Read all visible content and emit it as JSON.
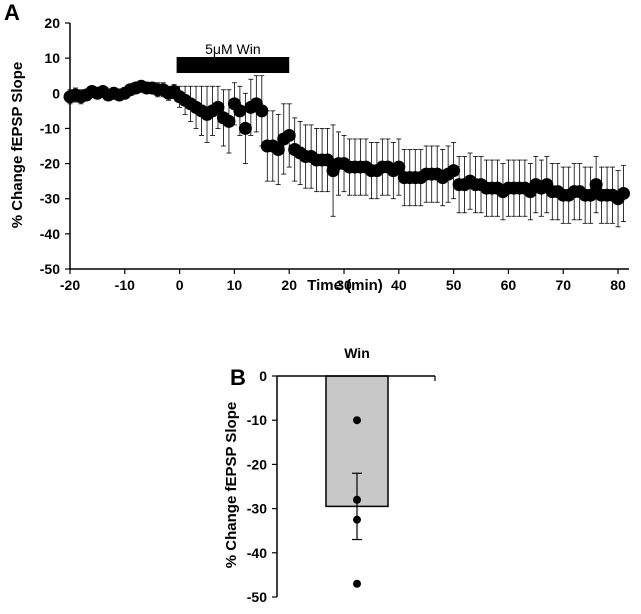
{
  "chart_data": [
    {
      "panel": "A",
      "type": "scatter",
      "xlabel": "Time (min)",
      "ylabel": "% Change fEPSP Slope",
      "xlim": [
        -20,
        82
      ],
      "ylim": [
        -50,
        20
      ],
      "xticks": [
        -20,
        -10,
        0,
        10,
        20,
        30,
        40,
        50,
        60,
        70,
        80
      ],
      "yticks": [
        20,
        10,
        0,
        -10,
        -20,
        -30,
        -40,
        -50
      ],
      "grid": false,
      "annotation": {
        "label": "5μM Win",
        "x_start": 0,
        "x_end": 20
      },
      "series": [
        {
          "x": [
            -20,
            -19,
            -18,
            -17,
            -16,
            -15,
            -14,
            -13,
            -12,
            -11,
            -10,
            -9,
            -8,
            -7,
            -6,
            -5,
            -4,
            -3,
            -2,
            -1,
            0,
            1,
            2,
            3,
            4,
            5,
            6,
            7,
            8,
            9,
            10,
            11,
            12,
            13,
            14,
            15,
            16,
            17,
            18,
            19,
            20,
            21,
            22,
            23,
            24,
            25,
            26,
            27,
            28,
            29,
            30,
            31,
            32,
            33,
            34,
            35,
            36,
            37,
            38,
            39,
            40,
            41,
            42,
            43,
            44,
            45,
            46,
            47,
            48,
            49,
            50,
            51,
            52,
            53,
            54,
            55,
            56,
            57,
            58,
            59,
            60,
            61,
            62,
            63,
            64,
            65,
            66,
            67,
            68,
            69,
            70,
            71,
            72,
            73,
            74,
            75,
            76,
            77,
            78,
            79,
            80,
            81
          ],
          "y": [
            -1,
            -0.5,
            -1,
            -0.5,
            0.5,
            0,
            0.5,
            -0.5,
            0,
            -0.5,
            0,
            1,
            1.5,
            2,
            1.5,
            1.5,
            1,
            1,
            0,
            0.5,
            -1,
            -2,
            -3,
            -4,
            -5,
            -6,
            -5,
            -4,
            -7,
            -8,
            -3,
            -5,
            -10,
            -4,
            -3,
            -5,
            -15,
            -15,
            -16,
            -13,
            -12,
            -16,
            -17,
            -18,
            -18,
            -19,
            -19,
            -19,
            -22,
            -20,
            -20,
            -21,
            -21,
            -21,
            -21,
            -22,
            -22,
            -21,
            -21,
            -22,
            -21,
            -24,
            -24,
            -24,
            -24,
            -23,
            -23,
            -23,
            -24,
            -23,
            -22,
            -26,
            -26,
            -25,
            -26,
            -26,
            -27,
            -27,
            -27,
            -28,
            -27,
            -27,
            -27,
            -27,
            -28,
            -26,
            -27,
            -26,
            -28,
            -28,
            -29,
            -29,
            -28,
            -28,
            -29,
            -29,
            -26,
            -29,
            -29,
            -29,
            -30,
            -28.5
          ],
          "err": [
            2,
            2,
            2,
            1.5,
            1.5,
            1.5,
            1.5,
            1.5,
            1.5,
            1.5,
            1.5,
            1.5,
            1.5,
            1.5,
            1.5,
            1.5,
            2,
            2,
            2,
            2,
            3,
            4,
            5,
            6,
            7,
            8,
            7,
            6,
            8,
            9,
            6,
            7,
            10,
            8,
            8,
            10,
            10,
            10,
            10,
            10,
            9,
            9,
            9,
            9,
            9,
            9,
            9,
            9,
            13,
            9,
            8,
            8,
            8,
            8,
            8,
            8,
            8,
            8,
            8,
            8,
            8,
            8,
            8,
            8,
            8,
            8,
            8,
            8,
            8,
            8,
            8,
            8,
            8,
            8,
            8,
            8,
            8,
            8,
            8,
            8,
            8,
            8,
            8,
            8,
            8,
            8,
            8,
            8,
            8,
            8,
            8,
            8,
            8,
            8,
            8,
            8,
            8,
            8,
            8,
            8,
            8,
            8
          ]
        }
      ]
    },
    {
      "panel": "B",
      "type": "bar",
      "categories": [
        "Win"
      ],
      "values": [
        -29.5
      ],
      "errors": [
        7.5
      ],
      "points": [
        -10,
        -28,
        -32.5,
        -47
      ],
      "ylabel": "% Change fEPSP Slope",
      "ylim": [
        -50,
        0
      ],
      "yticks": [
        0,
        -10,
        -20,
        -30,
        -40,
        -50
      ],
      "colors": {
        "bar": "#c8c8c8"
      }
    }
  ]
}
